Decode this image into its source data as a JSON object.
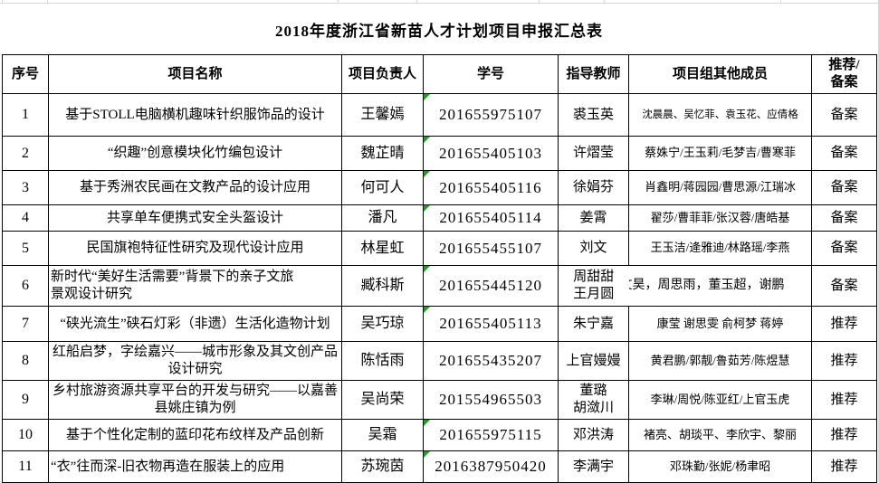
{
  "title": "2018年度浙江省新苗人才计划项目申报汇总表",
  "columns": [
    "序号",
    "项目名称",
    "项目负责人",
    "学号",
    "指导教师",
    "项目组其他成员",
    "推荐/\n备案"
  ],
  "rows": [
    {
      "no": "1",
      "name": "基于STOLL电脑横机趣味针织服饰品的设计",
      "leader": "王馨嫣",
      "student_id": "201655975107",
      "advisor": "裘玉英",
      "members": "沈晨晨、吴忆菲、袁玉花、应倩格",
      "status": "备案",
      "id_flag": true
    },
    {
      "no": "2",
      "name": "“织趣”创意模块化竹编包设计",
      "leader": "魏芷晴",
      "student_id": "201655405103",
      "advisor": "许熠莹",
      "members": "蔡姝宁/王玉莉/毛梦吉/曹寒菲",
      "status": "备案",
      "id_flag": true
    },
    {
      "no": "3",
      "name": "基于秀洲农民画在文教产品的设计应用",
      "leader": "何可人",
      "student_id": "201655405116",
      "advisor": "徐娟芬",
      "members": "肖鑫明/蒋园园/曹思源/江瑞冰",
      "status": "备案",
      "id_flag": true
    },
    {
      "no": "4",
      "name": "共享单车便携式安全头盔设计",
      "leader": "潘凡",
      "student_id": "201655405114",
      "advisor": "姜霄",
      "members": "翟莎/曹菲菲/张汉蓉/唐皓基",
      "status": "备案",
      "id_flag": true
    },
    {
      "no": "5",
      "name": "民国旗袍特征性研究及现代设计应用",
      "leader": "林星虹",
      "student_id": "201655455107",
      "advisor": "刘文",
      "members": "王玉洁/逄雅迪/林路瑶/李燕",
      "status": "备案",
      "id_flag": false
    },
    {
      "no": "6",
      "name": "新时代“美好生活需要”背景下的亲子文旅\n景观设计研究",
      "leader": "臧科斯",
      "student_id": "201655445120",
      "advisor": "周甜甜\n王月圆",
      "members": "文昊，周思雨，董玉超，谢鹏",
      "status": "备案",
      "id_flag": true
    },
    {
      "no": "7",
      "name": "“硖光流生”硖石灯彩（非遗）生活化造物计划",
      "leader": "吴巧琼",
      "student_id": "201655405113",
      "advisor": "朱宁嘉",
      "members": "康莹 谢思雯 俞柯梦 蒋婷",
      "status": "推荐",
      "id_flag": true
    },
    {
      "no": "8",
      "name": "红船启梦，字绘嘉兴——城市形象及其文创产品\n设计研究",
      "leader": "陈恬雨",
      "student_id": "201655435207",
      "advisor": "上官嫚嫚",
      "members": "黄君鹏/郭靓/鲁茹芳/陈煜慧",
      "status": "推荐",
      "id_flag": false
    },
    {
      "no": "9",
      "name": "乡村旅游资源共享平台的开发与研究——以嘉善\n县姚庄镇为例",
      "leader": "吴尚荣",
      "student_id": "201554965503",
      "advisor": "董璐\n胡潋川",
      "members": "李琳/周悦/陈亚红/上官玉虎",
      "status": "推荐",
      "id_flag": false
    },
    {
      "no": "10",
      "name": "基于个性化定制的蓝印花布纹样及产品创新",
      "leader": "吴霜",
      "student_id": "201655975115",
      "advisor": "邓洪涛",
      "members": "褚亮、胡琰平、李欣宇、黎丽",
      "status": "推荐",
      "id_flag": true
    },
    {
      "no": "11",
      "name": "“衣”往而深-旧衣物再造在服装上的应用",
      "leader": "苏琬茵",
      "student_id": "2016387950420",
      "advisor": "李满宇",
      "members": "邓珠勤/张妮/杨聿昭",
      "status": "推荐",
      "id_flag": true
    }
  ],
  "colors": {
    "border": "#000000",
    "grid_light": "#d8d8d8",
    "flag_green": "#1aa318",
    "text": "#000000"
  }
}
